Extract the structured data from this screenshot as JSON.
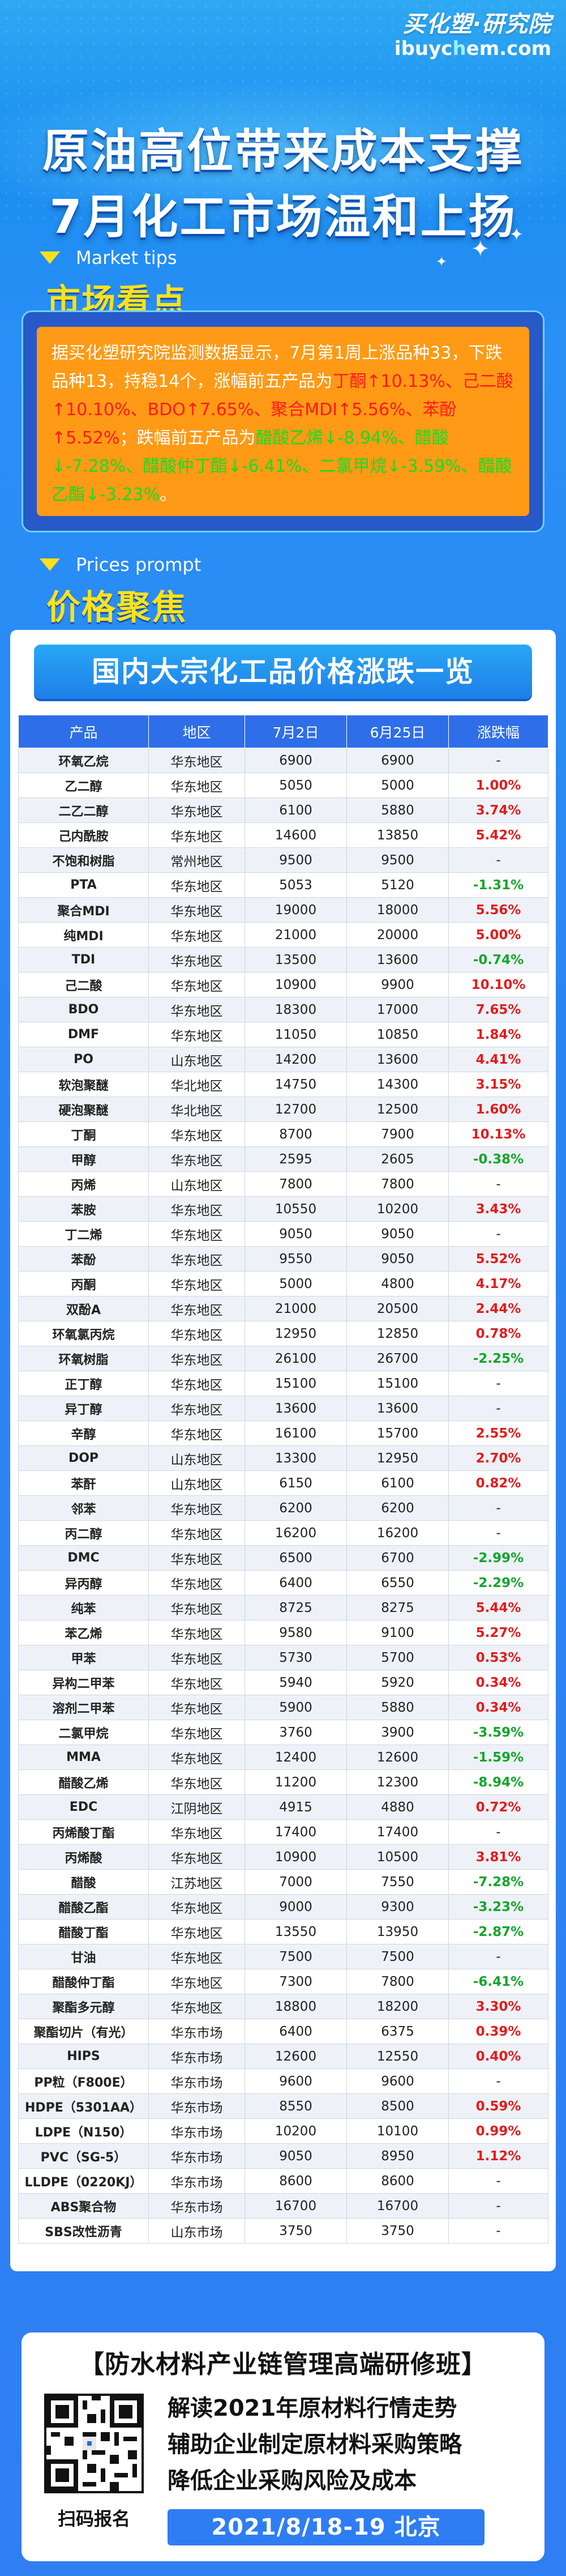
{
  "logo": {
    "main": "买化塑·研究院",
    "url_prefix": "ibuyc",
    "url_o": "h",
    "url_suffix": "em.com"
  },
  "headline": {
    "line1": "原油高位带来成本支撑",
    "line2": "7月化工市场温和上扬"
  },
  "market": {
    "tip": "Market tips",
    "title": "市场看点",
    "text_segments": [
      {
        "text": "据买化塑研究院监测数据显示，7月第1周上涨品种33，下跌品种13，持稳14个，涨幅前五产品为",
        "tone": "normal"
      },
      {
        "text": "丁酮↑10.13%、己二酸↑10.10%、BDO↑7.65%、聚合MDI↑5.56%、苯酚↑5.52%",
        "tone": "up"
      },
      {
        "text": "；跌幅前五产品为",
        "tone": "normal"
      },
      {
        "text": "醋酸乙烯↓-8.94%、醋酸↓-7.28%、醋酸仲丁酯↓-6.41%、二氯甲烷↓-3.59%、醋酸乙酯↓-3.23%",
        "tone": "down"
      },
      {
        "text": "。",
        "tone": "normal"
      }
    ]
  },
  "price": {
    "tip": "Prices prompt",
    "title": "价格聚焦",
    "banner": "国内大宗化工品价格涨跌一览",
    "headers": [
      "产品",
      "地区",
      "7月2日",
      "6月25日",
      "涨跌幅"
    ],
    "rows": [
      [
        "环氧乙烷",
        "华东地区",
        "6900",
        "6900",
        "-"
      ],
      [
        "乙二醇",
        "华东地区",
        "5050",
        "5000",
        "1.00%"
      ],
      [
        "二乙二醇",
        "华东地区",
        "6100",
        "5880",
        "3.74%"
      ],
      [
        "己内酰胺",
        "华东地区",
        "14600",
        "13850",
        "5.42%"
      ],
      [
        "不饱和树脂",
        "常州地区",
        "9500",
        "9500",
        "-"
      ],
      [
        "PTA",
        "华东地区",
        "5053",
        "5120",
        "-1.31%"
      ],
      [
        "聚合MDI",
        "华东地区",
        "19000",
        "18000",
        "5.56%"
      ],
      [
        "纯MDI",
        "华东地区",
        "21000",
        "20000",
        "5.00%"
      ],
      [
        "TDI",
        "华东地区",
        "13500",
        "13600",
        "-0.74%"
      ],
      [
        "己二酸",
        "华东地区",
        "10900",
        "9900",
        "10.10%"
      ],
      [
        "BDO",
        "华东地区",
        "18300",
        "17000",
        "7.65%"
      ],
      [
        "DMF",
        "华东地区",
        "11050",
        "10850",
        "1.84%"
      ],
      [
        "PO",
        "山东地区",
        "14200",
        "13600",
        "4.41%"
      ],
      [
        "软泡聚醚",
        "华北地区",
        "14750",
        "14300",
        "3.15%"
      ],
      [
        "硬泡聚醚",
        "华北地区",
        "12700",
        "12500",
        "1.60%"
      ],
      [
        "丁酮",
        "华东地区",
        "8700",
        "7900",
        "10.13%"
      ],
      [
        "甲醇",
        "华东地区",
        "2595",
        "2605",
        "-0.38%"
      ],
      [
        "丙烯",
        "山东地区",
        "7800",
        "7800",
        "-"
      ],
      [
        "苯胺",
        "华东地区",
        "10550",
        "10200",
        "3.43%"
      ],
      [
        "丁二烯",
        "华东地区",
        "9050",
        "9050",
        "-"
      ],
      [
        "苯酚",
        "华东地区",
        "9550",
        "9050",
        "5.52%"
      ],
      [
        "丙酮",
        "华东地区",
        "5000",
        "4800",
        "4.17%"
      ],
      [
        "双酚A",
        "华东地区",
        "21000",
        "20500",
        "2.44%"
      ],
      [
        "环氧氯丙烷",
        "华东地区",
        "12950",
        "12850",
        "0.78%"
      ],
      [
        "环氧树脂",
        "华东地区",
        "26100",
        "26700",
        "-2.25%"
      ],
      [
        "正丁醇",
        "华东地区",
        "15100",
        "15100",
        "-"
      ],
      [
        "异丁醇",
        "华东地区",
        "13600",
        "13600",
        "-"
      ],
      [
        "辛醇",
        "华东地区",
        "16100",
        "15700",
        "2.55%"
      ],
      [
        "DOP",
        "山东地区",
        "13300",
        "12950",
        "2.70%"
      ],
      [
        "苯酐",
        "山东地区",
        "6150",
        "6100",
        "0.82%"
      ],
      [
        "邻苯",
        "华东地区",
        "6200",
        "6200",
        "-"
      ],
      [
        "丙二醇",
        "华东地区",
        "16200",
        "16200",
        "-"
      ],
      [
        "DMC",
        "华东地区",
        "6500",
        "6700",
        "-2.99%"
      ],
      [
        "异丙醇",
        "华东地区",
        "6400",
        "6550",
        "-2.29%"
      ],
      [
        "纯苯",
        "华东地区",
        "8725",
        "8275",
        "5.44%"
      ],
      [
        "苯乙烯",
        "华东地区",
        "9580",
        "9100",
        "5.27%"
      ],
      [
        "甲苯",
        "华东地区",
        "5730",
        "5700",
        "0.53%"
      ],
      [
        "异构二甲苯",
        "华东地区",
        "5940",
        "5920",
        "0.34%"
      ],
      [
        "溶剂二甲苯",
        "华东地区",
        "5900",
        "5880",
        "0.34%"
      ],
      [
        "二氯甲烷",
        "华东地区",
        "3760",
        "3900",
        "-3.59%"
      ],
      [
        "MMA",
        "华东地区",
        "12400",
        "12600",
        "-1.59%"
      ],
      [
        "醋酸乙烯",
        "华东地区",
        "11200",
        "12300",
        "-8.94%"
      ],
      [
        "EDC",
        "江阴地区",
        "4915",
        "4880",
        "0.72%"
      ],
      [
        "丙烯酸丁酯",
        "华东地区",
        "17400",
        "17400",
        "-"
      ],
      [
        "丙烯酸",
        "华东地区",
        "10900",
        "10500",
        "3.81%"
      ],
      [
        "醋酸",
        "江苏地区",
        "7000",
        "7550",
        "-7.28%"
      ],
      [
        "醋酸乙酯",
        "华东地区",
        "9000",
        "9300",
        "-3.23%"
      ],
      [
        "醋酸丁酯",
        "华东地区",
        "13550",
        "13950",
        "-2.87%"
      ],
      [
        "甘油",
        "华东地区",
        "7500",
        "7500",
        "-"
      ],
      [
        "醋酸仲丁酯",
        "华东地区",
        "7300",
        "7800",
        "-6.41%"
      ],
      [
        "聚酯多元醇",
        "华东地区",
        "18800",
        "18200",
        "3.30%"
      ],
      [
        "聚酯切片（有光）",
        "华东市场",
        "6400",
        "6375",
        "0.39%"
      ],
      [
        "HIPS",
        "华东市场",
        "12600",
        "12550",
        "0.40%"
      ],
      [
        "PP粒（F800E）",
        "华东市场",
        "9600",
        "9600",
        "-"
      ],
      [
        "HDPE（5301AA）",
        "华东市场",
        "8550",
        "8500",
        "0.59%"
      ],
      [
        "LDPE（N150）",
        "华东市场",
        "10200",
        "10100",
        "0.99%"
      ],
      [
        "PVC（SG-5）",
        "华东市场",
        "9050",
        "8950",
        "1.12%"
      ],
      [
        "LLDPE（0220KJ）",
        "华东市场",
        "8600",
        "8600",
        "-"
      ],
      [
        "ABS聚合物",
        "华东市场",
        "16700",
        "16700",
        "-"
      ],
      [
        "SBS改性沥青",
        "山东市场",
        "3750",
        "3750",
        "-"
      ]
    ]
  },
  "promo": {
    "title": "【防水材料产业链管理高端研修班】",
    "lines": [
      "解读2021年原材料行情走势",
      "辅助企业制定原材料采购策略",
      "降低企业采购风险及成本"
    ],
    "qr_label": "扫码报名",
    "date": "2021/8/18-19  北京"
  }
}
